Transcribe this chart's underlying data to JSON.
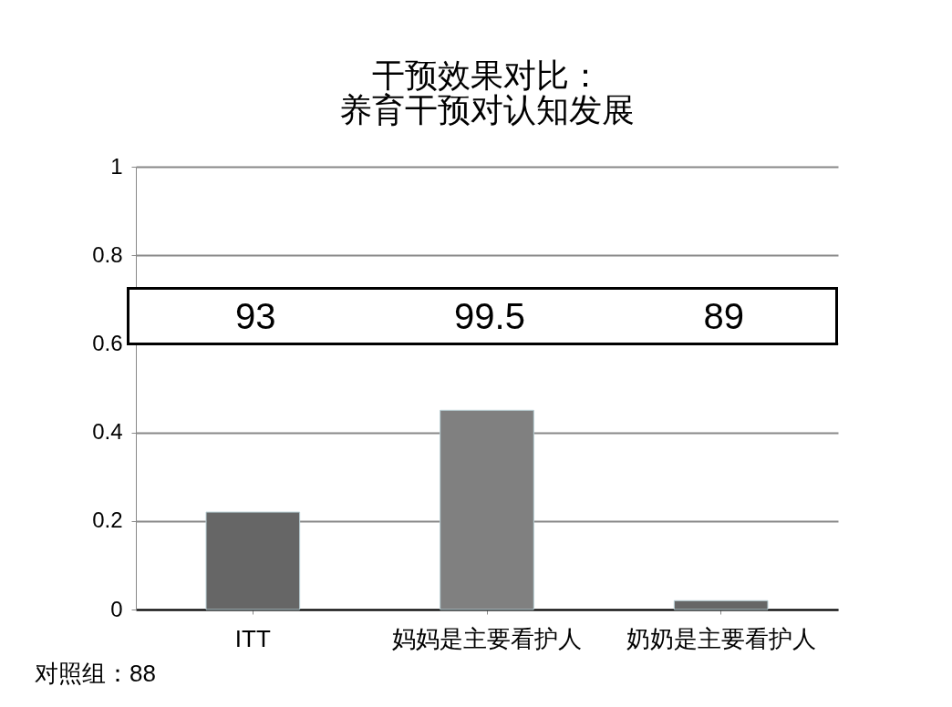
{
  "chart_data": {
    "type": "bar",
    "title": [
      "干预效果对比：",
      "养育干预对认知发展"
    ],
    "categories": [
      "ITT",
      "妈妈是主要看护人",
      "奶奶是主要看护人"
    ],
    "values": [
      0.22,
      0.45,
      0.02
    ],
    "colors": [
      "#666666",
      "#808080",
      "#666666"
    ],
    "ylim": [
      0,
      1
    ],
    "yticks": [
      0,
      0.2,
      0.4,
      0.6,
      0.8,
      1
    ],
    "grid": "y",
    "annotations": [
      "93",
      "99.5",
      "89",
      "对照组：88"
    ]
  }
}
